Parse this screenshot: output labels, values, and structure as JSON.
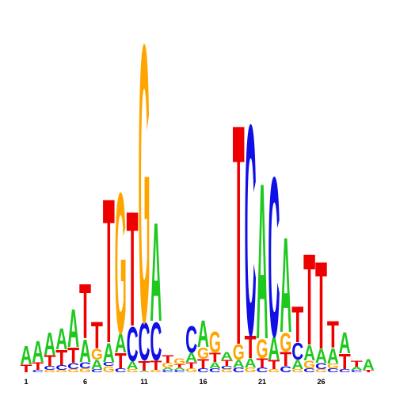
{
  "chart_data": {
    "type": "logo",
    "categories": [
      "1",
      null,
      null,
      null,
      null,
      "6",
      null,
      null,
      null,
      null,
      "11",
      null,
      null,
      null,
      null,
      "16",
      null,
      null,
      null,
      null,
      "21",
      null,
      null,
      null,
      null,
      "26",
      null,
      null,
      null,
      null
    ],
    "colors": {
      "A": "#1fc81f",
      "C": "#1010e6",
      "G": "#ffa500",
      "T": "#ee0000"
    },
    "ylim": [
      0,
      440
    ],
    "positions": [
      {
        "letters": [
          "T",
          "A"
        ],
        "values": [
          10,
          24
        ]
      },
      {
        "letters": [
          "C",
          "T",
          "A"
        ],
        "values": [
          3,
          10,
          28
        ]
      },
      {
        "letters": [
          "G",
          "C",
          "T",
          "A"
        ],
        "values": [
          3,
          5,
          14,
          30
        ]
      },
      {
        "letters": [
          "G",
          "C",
          "T",
          "A"
        ],
        "values": [
          3,
          6,
          20,
          28
        ]
      },
      {
        "letters": [
          "G",
          "C",
          "T",
          "A"
        ],
        "values": [
          4,
          8,
          20,
          50
        ]
      },
      {
        "letters": [
          "G",
          "C",
          "A",
          "T"
        ],
        "values": [
          5,
          8,
          30,
          72
        ]
      },
      {
        "letters": [
          "C",
          "A",
          "G",
          "T"
        ],
        "values": [
          4,
          12,
          14,
          35
        ]
      },
      {
        "letters": [
          "G",
          "C",
          "A",
          "T"
        ],
        "values": [
          8,
          5,
          25,
          190
        ]
      },
      {
        "letters": [
          "C",
          "T",
          "A",
          "G"
        ],
        "values": [
          5,
          20,
          25,
          185
        ]
      },
      {
        "letters": [
          "G",
          "A",
          "C",
          "T"
        ],
        "values": [
          4,
          10,
          45,
          151
        ]
      },
      {
        "letters": [
          "A",
          "T",
          "C",
          "G"
        ],
        "values": [
          2,
          13,
          50,
          365
        ]
      },
      {
        "letters": [
          "G",
          "T",
          "C",
          "A"
        ],
        "values": [
          3,
          12,
          50,
          130
        ]
      },
      {
        "letters": [
          "C",
          "A",
          "G",
          "T"
        ],
        "values": [
          3,
          3,
          6,
          10
        ]
      },
      {
        "letters": [
          "C",
          "A",
          "T",
          "G"
        ],
        "values": [
          3,
          3,
          4,
          8
        ]
      },
      {
        "letters": [
          "G",
          "T",
          "A",
          "C"
        ],
        "values": [
          5,
          8,
          12,
          35
        ]
      },
      {
        "letters": [
          "C",
          "T",
          "G",
          "A"
        ],
        "values": [
          5,
          12,
          15,
          35
        ]
      },
      {
        "letters": [
          "C",
          "A",
          "T",
          "G"
        ],
        "values": [
          5,
          8,
          12,
          28
        ]
      },
      {
        "letters": [
          "G",
          "C",
          "T",
          "A"
        ],
        "values": [
          4,
          4,
          8,
          10
        ]
      },
      {
        "letters": [
          "C",
          "A",
          "G",
          "T"
        ],
        "values": [
          6,
          10,
          20,
          290
        ]
      },
      {
        "letters": [
          "G",
          "A",
          "T",
          "C"
        ],
        "values": [
          6,
          12,
          30,
          277
        ]
      },
      {
        "letters": [
          "C",
          "T",
          "G",
          "A"
        ],
        "values": [
          6,
          12,
          25,
          205
        ]
      },
      {
        "letters": [
          "G",
          "T",
          "A",
          "C"
        ],
        "values": [
          4,
          12,
          30,
          210
        ]
      },
      {
        "letters": [
          "C",
          "T",
          "G",
          "A"
        ],
        "values": [
          8,
          18,
          25,
          125
        ]
      },
      {
        "letters": [
          "G",
          "A",
          "C",
          "T"
        ],
        "values": [
          4,
          12,
          22,
          47
        ]
      },
      {
        "letters": [
          "C",
          "G",
          "A",
          "T"
        ],
        "values": [
          5,
          10,
          20,
          120
        ]
      },
      {
        "letters": [
          "G",
          "C",
          "A",
          "T"
        ],
        "values": [
          4,
          8,
          18,
          115
        ]
      },
      {
        "letters": [
          "C",
          "G",
          "A",
          "T"
        ],
        "values": [
          5,
          6,
          20,
          35
        ]
      },
      {
        "letters": [
          "C",
          "T",
          "A"
        ],
        "values": [
          4,
          20,
          28
        ]
      },
      {
        "letters": [
          "C",
          "A",
          "T"
        ],
        "values": [
          3,
          4,
          8
        ]
      },
      {
        "letters": [
          "T",
          "A"
        ],
        "values": [
          3,
          14
        ]
      }
    ]
  }
}
